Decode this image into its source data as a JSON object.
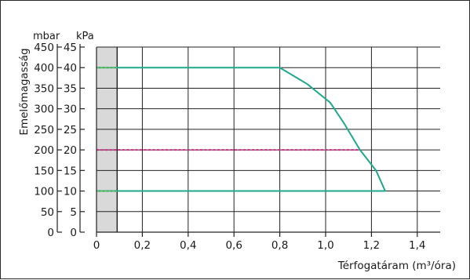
{
  "chart_data": {
    "type": "line",
    "title": "",
    "xlabel": "Térfogatáram (m³/óra)",
    "ylabel": "Emelőmagasság",
    "y_unit_left": "mbar",
    "y_unit_right": "kPa",
    "xlim": [
      0,
      1.5
    ],
    "ylim_mbar": [
      0,
      450
    ],
    "x_ticks": [
      "0",
      "0,2",
      "0,4",
      "0,6",
      "0,8",
      "1,0",
      "1,2",
      "1,4"
    ],
    "x_tick_values": [
      0,
      0.2,
      0.4,
      0.6,
      0.8,
      1.0,
      1.2,
      1.4
    ],
    "y_ticks_mbar": [
      "0",
      "50",
      "100",
      "150",
      "200",
      "250",
      "300",
      "350",
      "400",
      "450"
    ],
    "y_ticks_kpa": [
      "0",
      "5",
      "10",
      "15",
      "20",
      "25",
      "30",
      "35",
      "40",
      "45"
    ],
    "y_tick_values_mbar": [
      0,
      50,
      100,
      150,
      200,
      250,
      300,
      350,
      400,
      450
    ],
    "grid": true,
    "shaded_region_x": [
      0,
      0.09
    ],
    "series": [
      {
        "type": "polygon",
        "color": "#1fa98c",
        "points": [
          [
            0,
            100
          ],
          [
            1.26,
            100
          ],
          [
            1.22,
            150
          ],
          [
            1.15,
            200
          ],
          [
            1.08,
            265
          ],
          [
            1.02,
            315
          ],
          [
            0.92,
            360
          ],
          [
            0.8,
            400
          ],
          [
            0,
            400
          ]
        ]
      },
      {
        "type": "dashed",
        "color": "#e0218a",
        "points": [
          [
            0,
            200
          ],
          [
            1.15,
            200
          ]
        ]
      }
    ],
    "colors": {
      "shade": "#d9d9d9",
      "grid": "#222222",
      "accent_small_dash": "#7fbf20"
    }
  }
}
